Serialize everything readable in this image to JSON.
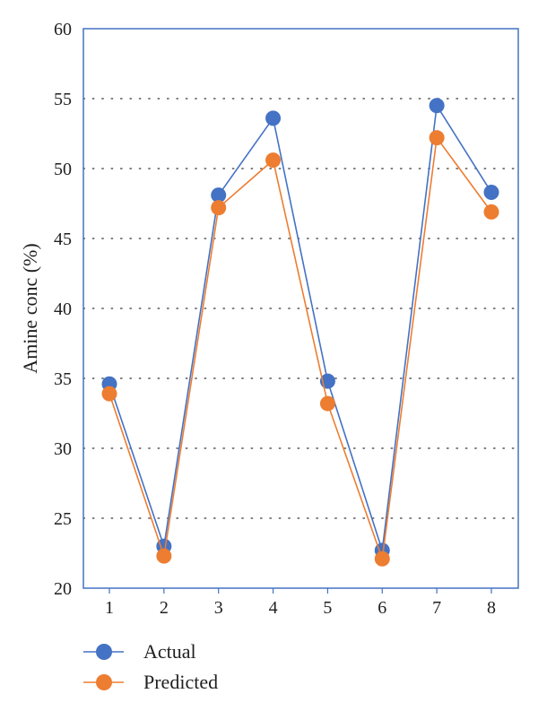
{
  "chart_data": {
    "type": "line",
    "title": "",
    "xlabel": "",
    "ylabel": "Amine conc (%)",
    "categories": [
      "1",
      "2",
      "3",
      "4",
      "5",
      "6",
      "7",
      "8"
    ],
    "ylim": [
      20,
      60
    ],
    "yticks": [
      20,
      25,
      30,
      35,
      40,
      45,
      50,
      55,
      60
    ],
    "grid": "dotted horizontal",
    "legend_position": "bottom-left",
    "series": [
      {
        "name": "Actual",
        "color": "#4472C4",
        "values": [
          34.6,
          23.0,
          48.1,
          53.6,
          34.8,
          22.7,
          54.5,
          48.3
        ]
      },
      {
        "name": "Predicted",
        "color": "#ED7D31",
        "values": [
          33.9,
          22.3,
          47.2,
          50.6,
          33.2,
          22.1,
          52.2,
          46.9
        ]
      }
    ]
  }
}
